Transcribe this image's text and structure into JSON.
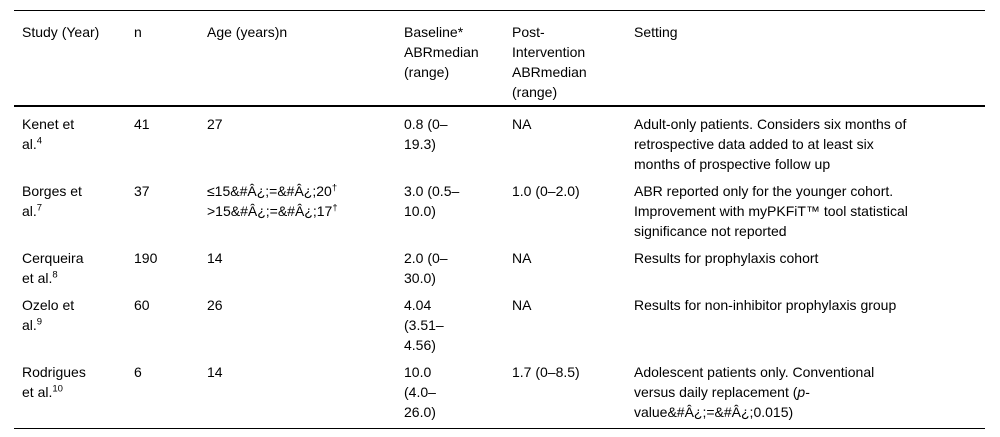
{
  "table": {
    "columns": [
      {
        "label": "Study (Year)"
      },
      {
        "label": "n"
      },
      {
        "label": "Age (years)n"
      },
      {
        "label": "Baseline*\nABRmedian\n(range)"
      },
      {
        "label": "Post-\nIntervention\nABRmedian\n(range)"
      },
      {
        "label": "Setting"
      }
    ],
    "rows": [
      {
        "study": "Kenet et\nal.<sup>4</sup>",
        "n": "41",
        "age": "27",
        "baseline": "0.8 (0–\n19.3)",
        "post": "NA",
        "setting": "Adult-only patients. Considers six months of\nretrospective data added to at least six\nmonths of prospective follow up"
      },
      {
        "study": "Borges et\nal.<sup>7</sup>",
        "n": "37",
        "age": "≤15&amp;#Â¿;=&amp;#Â¿;20<sup>†</sup>\n&gt;15&amp;#Â¿;=&amp;#Â¿;17<sup>†</sup>",
        "baseline": "3.0 (0.5–\n10.0)",
        "post": "1.0 (0–2.0)",
        "setting": "ABR reported only for the younger cohort.\nImprovement with myPKFiT™ tool statistical\nsignificance not reported"
      },
      {
        "study": "Cerqueira\net al.<sup>8</sup>",
        "n": "190",
        "age": "14",
        "baseline": "2.0 (0–\n30.0)",
        "post": "NA",
        "setting": "Results for prophylaxis cohort"
      },
      {
        "study": "Ozelo et\nal.<sup>9</sup>",
        "n": "60",
        "age": "26",
        "baseline": "4.04\n(3.51–\n4.56)",
        "post": "NA",
        "setting": "Results for non-inhibitor prophylaxis group"
      },
      {
        "study": "Rodrigues\net al.<sup>10</sup>",
        "n": "6",
        "age": "14",
        "baseline": "10.0\n(4.0–\n26.0)",
        "post": "1.7 (0–8.5)",
        "setting": "Adolescent patients only. Conventional\nversus daily replacement (<i>p</i>-\nvalue&amp;#Â¿;=&amp;#Â¿;0.015)"
      }
    ]
  }
}
